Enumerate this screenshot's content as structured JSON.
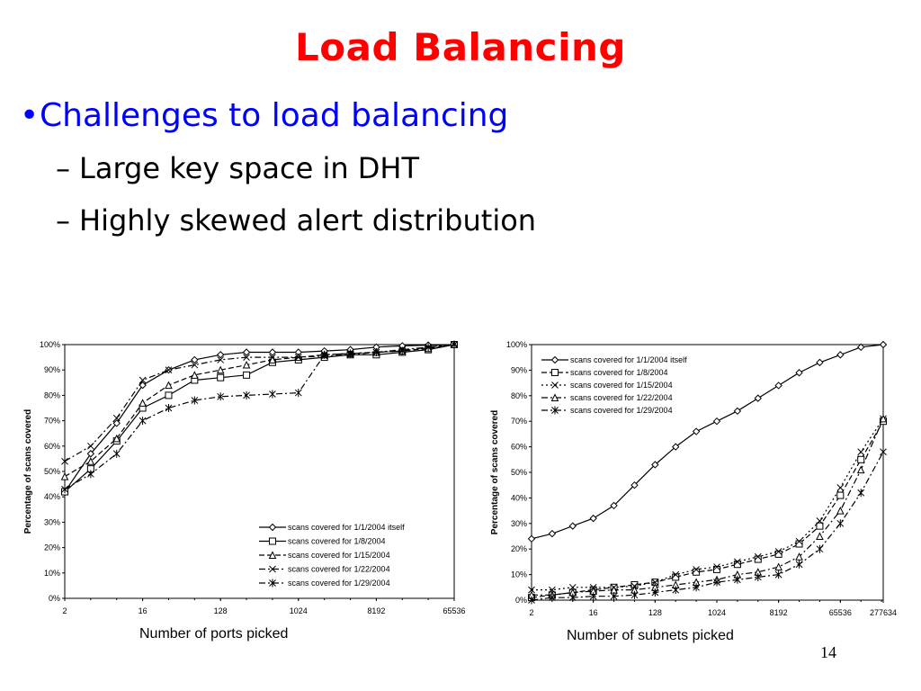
{
  "slide": {
    "title": "Load Balancing",
    "bullet": "Challenges to load balancing",
    "subbullets": [
      "Large key space in DHT",
      "Highly skewed alert distribution"
    ],
    "page_number": "14"
  },
  "chart_data": [
    {
      "type": "line",
      "xlabel": "Number of ports picked",
      "ylabel": "Percentage of scans covered",
      "x_scale": "log2",
      "x_tick_labels": [
        "2",
        "16",
        "128",
        "1024",
        "8192",
        "65536"
      ],
      "y_tick_labels": [
        "0%",
        "10%",
        "20%",
        "30%",
        "40%",
        "50%",
        "60%",
        "70%",
        "80%",
        "90%",
        "100%"
      ],
      "ylim": [
        0,
        100
      ],
      "legend": "bottom-right",
      "series": [
        {
          "name": "scans covered for 1/1/2004 itself",
          "marker": "diamond",
          "dash": "solid",
          "x": [
            2,
            4,
            8,
            16,
            32,
            64,
            128,
            256,
            512,
            1024,
            2048,
            4096,
            8192,
            16384,
            32768,
            65536
          ],
          "y": [
            42,
            57,
            69,
            84,
            90,
            94,
            96,
            97,
            97,
            97,
            97.5,
            98,
            99,
            99.5,
            99.8,
            100
          ]
        },
        {
          "name": "scans covered for 1/8/2004",
          "marker": "square",
          "dash": "solid",
          "x": [
            2,
            4,
            8,
            16,
            32,
            64,
            128,
            256,
            512,
            1024,
            2048,
            4096,
            8192,
            16384,
            32768,
            65536
          ],
          "y": [
            42,
            51,
            62,
            75,
            80,
            86,
            87,
            88,
            93,
            94,
            95,
            96,
            96,
            97,
            98,
            100
          ]
        },
        {
          "name": "scans covered for 1/15/2004",
          "marker": "triangle",
          "dash": "dashed",
          "x": [
            2,
            4,
            8,
            16,
            32,
            64,
            128,
            256,
            512,
            1024,
            2048,
            4096,
            8192,
            16384,
            32768,
            65536
          ],
          "y": [
            48,
            54,
            63,
            77,
            84,
            88,
            90,
            92,
            94,
            95,
            96,
            96.5,
            97,
            97.5,
            98.5,
            100
          ]
        },
        {
          "name": "scans covered for 1/22/2004",
          "marker": "x",
          "dash": "dashdot",
          "x": [
            2,
            4,
            8,
            16,
            32,
            64,
            128,
            256,
            512,
            1024,
            2048,
            4096,
            8192,
            16384,
            32768,
            65536
          ],
          "y": [
            54,
            60,
            71,
            86,
            90,
            92,
            94,
            95,
            95,
            95,
            95.5,
            96,
            97,
            98,
            99,
            100
          ]
        },
        {
          "name": "scans covered for 1/29/2004",
          "marker": "star",
          "dash": "dashdot",
          "x": [
            2,
            4,
            8,
            16,
            32,
            64,
            128,
            256,
            512,
            1024,
            2048,
            4096,
            8192,
            16384,
            32768,
            65536
          ],
          "y": [
            43,
            49,
            57,
            70,
            75,
            78,
            79.5,
            80,
            80.5,
            81,
            96,
            96.5,
            97,
            97.5,
            99,
            100
          ]
        }
      ]
    },
    {
      "type": "line",
      "xlabel": "Number of subnets picked",
      "ylabel": "Percentage of scans covered",
      "x_scale": "log2",
      "x_tick_labels": [
        "2",
        "16",
        "128",
        "1024",
        "8192",
        "65536",
        "277634"
      ],
      "y_tick_labels": [
        "0%",
        "10%",
        "20%",
        "30%",
        "40%",
        "50%",
        "60%",
        "70%",
        "80%",
        "90%",
        "100%"
      ],
      "ylim": [
        0,
        100
      ],
      "legend": "top-left",
      "series": [
        {
          "name": "scans covered for 1/1/2004 itself",
          "marker": "diamond",
          "dash": "solid",
          "x": [
            2,
            4,
            8,
            16,
            32,
            64,
            128,
            256,
            512,
            1024,
            2048,
            4096,
            8192,
            16384,
            32768,
            65536,
            131072,
            277634
          ],
          "y": [
            24,
            26,
            29,
            32,
            37,
            45,
            53,
            60,
            66,
            70,
            74,
            79,
            84,
            89,
            93,
            96,
            99,
            100
          ]
        },
        {
          "name": "scans covered for 1/8/2004",
          "marker": "square",
          "dash": "dashed",
          "x": [
            2,
            4,
            8,
            16,
            32,
            64,
            128,
            256,
            512,
            1024,
            2048,
            4096,
            8192,
            16384,
            32768,
            65536,
            131072,
            277634
          ],
          "y": [
            1,
            2,
            3,
            4,
            5,
            6,
            7,
            9,
            11,
            12,
            14,
            16,
            18,
            22,
            29,
            41,
            55,
            70
          ]
        },
        {
          "name": "scans covered for 1/15/2004",
          "marker": "x",
          "dash": "dotted",
          "x": [
            2,
            4,
            8,
            16,
            32,
            64,
            128,
            256,
            512,
            1024,
            2048,
            4096,
            8192,
            16384,
            32768,
            65536,
            131072,
            277634
          ],
          "y": [
            4,
            4,
            5,
            5,
            5,
            5.5,
            7,
            10,
            12,
            13,
            15,
            17,
            19,
            23,
            31,
            44,
            58,
            71
          ]
        },
        {
          "name": "scans covered for 1/22/2004",
          "marker": "triangle",
          "dash": "dashdot",
          "x": [
            2,
            4,
            8,
            16,
            32,
            64,
            128,
            256,
            512,
            1024,
            2048,
            4096,
            8192,
            16384,
            32768,
            65536,
            131072,
            277634
          ],
          "y": [
            2,
            2,
            3,
            3.5,
            4,
            4,
            5,
            6,
            7,
            8,
            10,
            11,
            13,
            17,
            25,
            35,
            51,
            71
          ]
        },
        {
          "name": "scans covered for 1/29/2004",
          "marker": "star",
          "dash": "dashdot",
          "x": [
            2,
            4,
            8,
            16,
            32,
            64,
            128,
            256,
            512,
            1024,
            2048,
            4096,
            8192,
            16384,
            32768,
            65536,
            131072,
            277634
          ],
          "y": [
            0,
            1,
            1,
            1.5,
            1.5,
            2,
            3,
            4,
            5,
            7,
            8,
            9,
            10,
            14,
            20,
            30,
            42,
            58
          ]
        }
      ]
    }
  ]
}
